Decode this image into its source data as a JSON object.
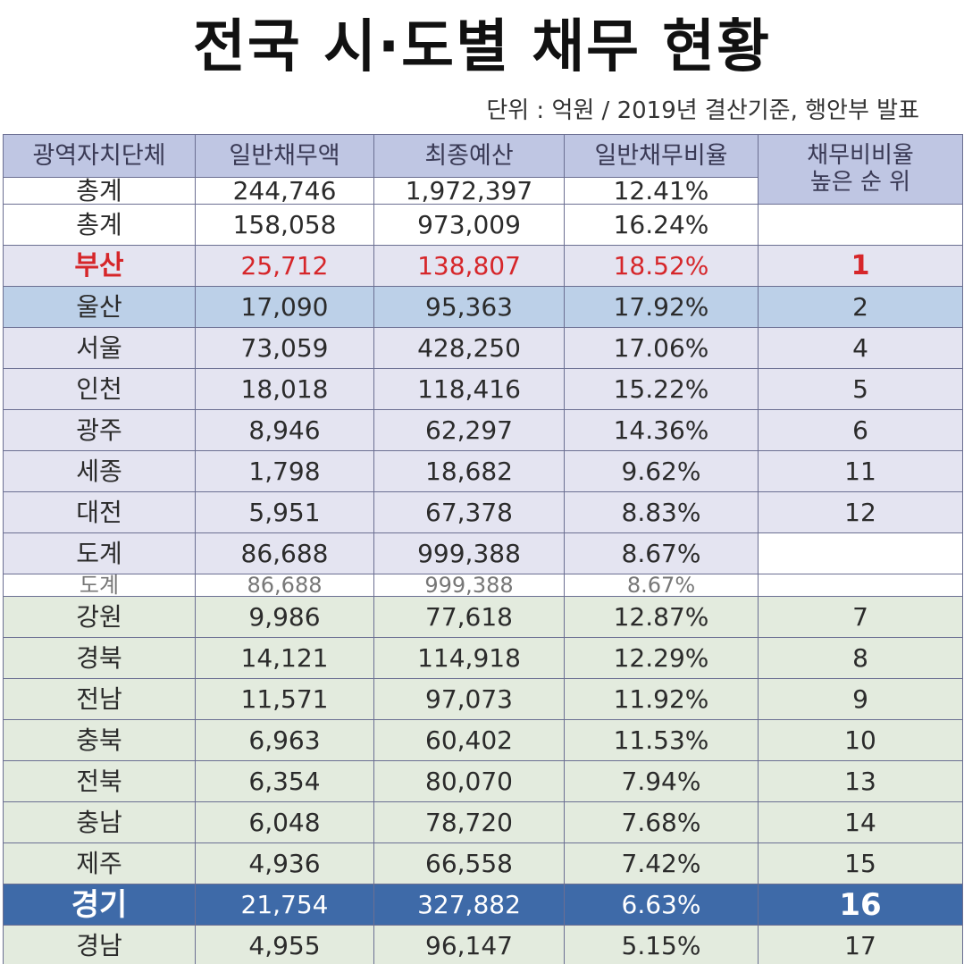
{
  "title": "전국 시·도별 채무 현황",
  "subtitle": "단위 : 억원   / 2019년 결산기준, 행안부 발표",
  "headers": [
    "광역자치단체",
    "일반채무액",
    "최종예산",
    "일반채무비율",
    "채무비비율\n높은 순 위"
  ],
  "rows": [
    {
      "name": "총계",
      "debt": "244,746",
      "budget": "1,972,397",
      "ratio": "12.41%",
      "rank": ""
    },
    {
      "name": "총계",
      "debt": "158,058",
      "budget": "973,009",
      "ratio": "16.24%",
      "rank": ""
    },
    {
      "name": "부산",
      "debt": "25,712",
      "budget": "138,807",
      "ratio": "18.52%",
      "rank": "1"
    },
    {
      "name": "울산",
      "debt": "17,090",
      "budget": "95,363",
      "ratio": "17.92%",
      "rank": "2"
    },
    {
      "name": "서울",
      "debt": "73,059",
      "budget": "428,250",
      "ratio": "17.06%",
      "rank": "4"
    },
    {
      "name": "인천",
      "debt": "18,018",
      "budget": "118,416",
      "ratio": "15.22%",
      "rank": "5"
    },
    {
      "name": "광주",
      "debt": "8,946",
      "budget": "62,297",
      "ratio": "14.36%",
      "rank": "6"
    },
    {
      "name": "세종",
      "debt": "1,798",
      "budget": "18,682",
      "ratio": "9.62%",
      "rank": "11"
    },
    {
      "name": "대전",
      "debt": "5,951",
      "budget": "67,378",
      "ratio": "8.83%",
      "rank": "12"
    },
    {
      "name": "도계",
      "debt": "86,688",
      "budget": "999,388",
      "ratio": "8.67%",
      "rank": ""
    },
    {
      "name": "도계",
      "debt": "86,688",
      "budget": "999,388",
      "ratio": "8.67%",
      "rank": ""
    },
    {
      "name": "강원",
      "debt": "9,986",
      "budget": "77,618",
      "ratio": "12.87%",
      "rank": "7"
    },
    {
      "name": "경북",
      "debt": "14,121",
      "budget": "114,918",
      "ratio": "12.29%",
      "rank": "8"
    },
    {
      "name": "전남",
      "debt": "11,571",
      "budget": "97,073",
      "ratio": "11.92%",
      "rank": "9"
    },
    {
      "name": "충북",
      "debt": "6,963",
      "budget": "60,402",
      "ratio": "11.53%",
      "rank": "10"
    },
    {
      "name": "전북",
      "debt": "6,354",
      "budget": "80,070",
      "ratio": "7.94%",
      "rank": "13"
    },
    {
      "name": "충남",
      "debt": "6,048",
      "budget": "78,720",
      "ratio": "7.68%",
      "rank": "14"
    },
    {
      "name": "제주",
      "debt": "4,936",
      "budget": "66,558",
      "ratio": "7.42%",
      "rank": "15"
    },
    {
      "name": "경기",
      "debt": "21,754",
      "budget": "327,882",
      "ratio": "6.63%",
      "rank": "16"
    },
    {
      "name": "경남",
      "debt": "4,955",
      "budget": "96,147",
      "ratio": "5.15%",
      "rank": "17"
    }
  ],
  "colors": {
    "header_bg": "#bfc6e3",
    "metro_bg": "#e4e4f1",
    "province_bg": "#e3ebde",
    "ulsan_bg": "#bcd0e8",
    "gyeonggi_bg": "#3e6aa8",
    "busan_text": "#d6262a"
  }
}
